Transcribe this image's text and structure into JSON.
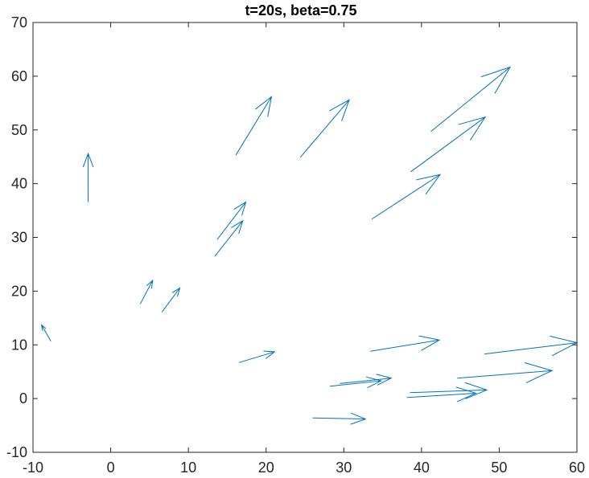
{
  "chart_data": {
    "type": "quiver",
    "title": "t=20s, beta=0.75",
    "xlabel": "",
    "ylabel": "",
    "xlim": [
      -10,
      60
    ],
    "ylim": [
      -10,
      70
    ],
    "xticks": [
      -10,
      0,
      10,
      20,
      30,
      40,
      50,
      60
    ],
    "yticks": [
      -10,
      0,
      10,
      20,
      30,
      40,
      50,
      60,
      70
    ],
    "grid": false,
    "box": true,
    "arrow_color": "#0072BD",
    "axis_color": "#262626",
    "arrows": [
      {
        "x": -7.7,
        "y": 10.7,
        "dx": -1.2,
        "dy": 3.0
      },
      {
        "x": -2.9,
        "y": 36.6,
        "dx": 0.0,
        "dy": 9.0
      },
      {
        "x": 3.8,
        "y": 17.6,
        "dx": 1.6,
        "dy": 4.4
      },
      {
        "x": 6.6,
        "y": 16.1,
        "dx": 2.3,
        "dy": 4.5
      },
      {
        "x": 13.4,
        "y": 26.5,
        "dx": 3.6,
        "dy": 6.6
      },
      {
        "x": 13.7,
        "y": 29.6,
        "dx": 3.7,
        "dy": 7.0
      },
      {
        "x": 16.1,
        "y": 45.3,
        "dx": 4.6,
        "dy": 10.9
      },
      {
        "x": 16.5,
        "y": 6.7,
        "dx": 4.6,
        "dy": 2.0
      },
      {
        "x": 24.4,
        "y": 44.9,
        "dx": 6.3,
        "dy": 10.7
      },
      {
        "x": 26.0,
        "y": -3.6,
        "dx": 6.8,
        "dy": -0.2
      },
      {
        "x": 28.2,
        "y": 2.3,
        "dx": 6.6,
        "dy": 1.0
      },
      {
        "x": 29.5,
        "y": 2.8,
        "dx": 6.6,
        "dy": 1.0
      },
      {
        "x": 33.6,
        "y": 33.4,
        "dx": 8.8,
        "dy": 8.3
      },
      {
        "x": 33.4,
        "y": 8.8,
        "dx": 8.9,
        "dy": 2.1
      },
      {
        "x": 38.1,
        "y": 0.2,
        "dx": 8.9,
        "dy": 0.8
      },
      {
        "x": 38.5,
        "y": 1.1,
        "dx": 9.9,
        "dy": 0.5
      },
      {
        "x": 38.6,
        "y": 42.2,
        "dx": 9.6,
        "dy": 10.2
      },
      {
        "x": 41.2,
        "y": 49.7,
        "dx": 10.2,
        "dy": 12.0
      },
      {
        "x": 44.6,
        "y": 3.8,
        "dx": 12.2,
        "dy": 1.4
      },
      {
        "x": 48.1,
        "y": 8.3,
        "dx": 11.9,
        "dy": 2.1
      }
    ]
  }
}
